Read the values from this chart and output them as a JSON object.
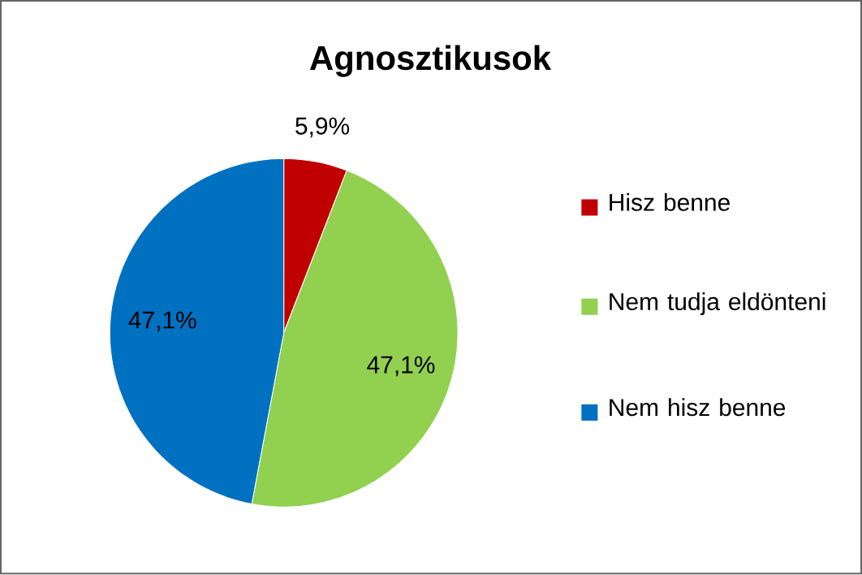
{
  "chart_data": {
    "type": "pie",
    "title": "Agnosztikusok",
    "categories": [
      "Hisz benne",
      "Nem tudja eldönteni",
      "Nem hisz benne"
    ],
    "values": [
      5.9,
      47.1,
      47.1
    ],
    "value_labels": [
      "5,9%",
      "47,1%",
      "47,1%"
    ],
    "colors": [
      "#c00000",
      "#92d050",
      "#0070c0"
    ],
    "legend": "right"
  }
}
